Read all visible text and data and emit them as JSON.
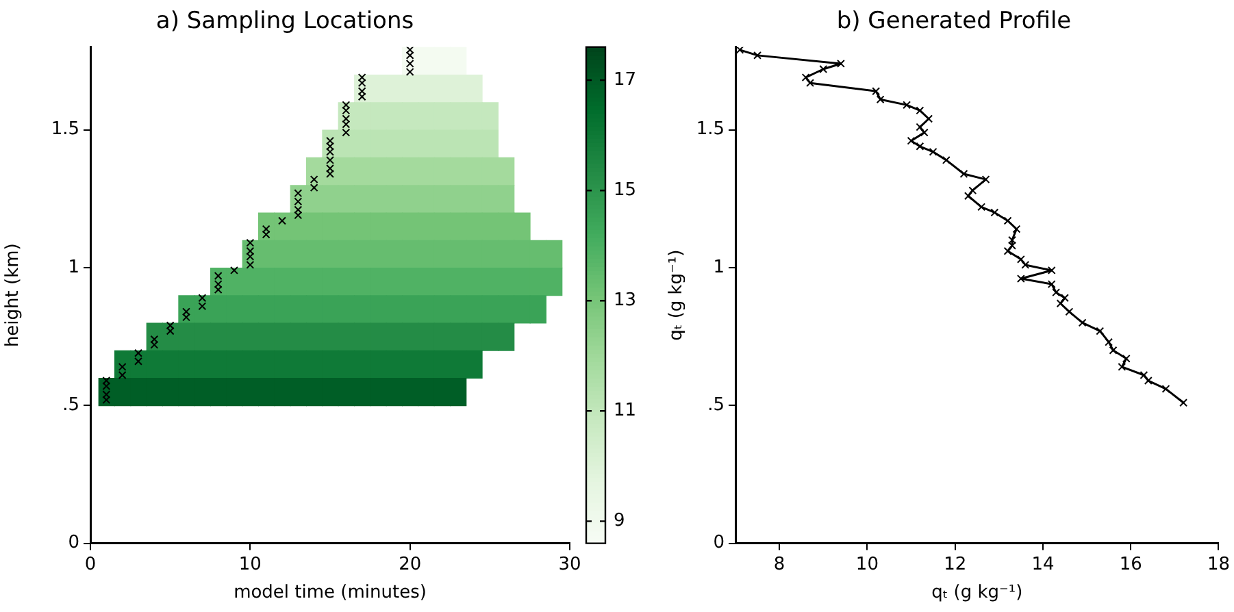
{
  "chart_data": [
    {
      "type": "heatmap",
      "title": "a) Sampling Locations",
      "xlabel": "model time (minutes)",
      "ylabel": "height (km)",
      "clabel": "qₜ (g kg⁻¹)",
      "x": [
        1,
        2,
        3,
        4,
        5,
        6,
        7,
        8,
        9,
        10,
        11,
        12,
        13,
        14,
        15,
        16,
        17,
        18,
        19,
        20,
        21,
        22,
        23,
        24,
        25,
        26,
        27,
        28,
        29
      ],
      "y": [
        1.75,
        1.65,
        1.55,
        1.45,
        1.35,
        1.25,
        1.15,
        1.05,
        0.95,
        0.85,
        0.75,
        0.65,
        0.55
      ],
      "cells": [
        [
          null,
          null,
          null,
          null,
          null,
          null,
          null,
          null,
          null,
          null,
          null,
          null,
          null,
          null,
          null,
          null,
          null,
          null,
          null,
          8.8,
          8.8,
          8.8,
          8.8,
          null,
          null,
          null,
          null,
          null,
          null
        ],
        [
          null,
          null,
          null,
          null,
          null,
          null,
          null,
          null,
          null,
          null,
          null,
          null,
          null,
          null,
          null,
          null,
          10.0,
          10.0,
          10.0,
          10.0,
          10.0,
          10.0,
          10.0,
          10.0,
          null,
          null,
          null,
          null,
          null
        ],
        [
          null,
          null,
          null,
          null,
          null,
          null,
          null,
          null,
          null,
          null,
          null,
          null,
          null,
          null,
          null,
          10.9,
          10.9,
          10.9,
          10.9,
          10.9,
          10.9,
          10.9,
          10.9,
          10.9,
          10.9,
          null,
          null,
          null,
          null
        ],
        [
          null,
          null,
          null,
          null,
          null,
          null,
          null,
          null,
          null,
          null,
          null,
          null,
          null,
          null,
          11.2,
          11.2,
          11.2,
          11.2,
          11.2,
          11.2,
          11.2,
          11.2,
          11.2,
          11.2,
          11.2,
          null,
          null,
          null,
          null
        ],
        [
          null,
          null,
          null,
          null,
          null,
          null,
          null,
          null,
          null,
          null,
          null,
          null,
          null,
          11.9,
          11.9,
          11.9,
          11.9,
          11.9,
          11.9,
          11.9,
          11.9,
          11.9,
          11.9,
          11.9,
          11.9,
          11.9,
          null,
          null,
          null
        ],
        [
          null,
          null,
          null,
          null,
          null,
          null,
          null,
          null,
          null,
          null,
          null,
          null,
          12.4,
          12.4,
          12.4,
          12.4,
          12.4,
          12.4,
          12.4,
          12.4,
          12.4,
          12.4,
          12.4,
          12.4,
          12.4,
          12.4,
          null,
          null,
          null
        ],
        [
          null,
          null,
          null,
          null,
          null,
          null,
          null,
          null,
          null,
          null,
          13.1,
          13.1,
          13.1,
          13.1,
          13.1,
          13.1,
          13.1,
          13.1,
          13.1,
          13.1,
          13.1,
          13.1,
          13.1,
          13.1,
          13.1,
          13.1,
          13.1,
          null,
          null
        ],
        [
          null,
          null,
          null,
          null,
          null,
          null,
          null,
          null,
          null,
          13.4,
          13.4,
          13.4,
          13.4,
          13.4,
          13.4,
          13.4,
          13.4,
          13.4,
          13.4,
          13.4,
          13.4,
          13.4,
          13.4,
          13.4,
          13.4,
          13.4,
          13.4,
          13.4,
          13.4
        ],
        [
          null,
          null,
          null,
          null,
          null,
          null,
          null,
          13.9,
          13.9,
          13.9,
          13.9,
          13.9,
          13.9,
          13.9,
          13.9,
          13.9,
          13.9,
          13.9,
          13.9,
          13.9,
          13.9,
          13.9,
          13.9,
          13.9,
          13.9,
          13.9,
          13.9,
          13.9,
          13.9
        ],
        [
          null,
          null,
          null,
          null,
          null,
          14.5,
          14.5,
          14.5,
          14.5,
          14.5,
          14.5,
          14.5,
          14.5,
          14.5,
          14.5,
          14.5,
          14.5,
          14.5,
          14.5,
          14.5,
          14.5,
          14.5,
          14.5,
          14.5,
          14.5,
          14.5,
          14.5,
          14.5,
          null
        ],
        [
          null,
          null,
          null,
          15.3,
          15.3,
          15.3,
          15.3,
          15.3,
          15.3,
          15.3,
          15.3,
          15.3,
          15.3,
          15.3,
          15.3,
          15.3,
          15.3,
          15.3,
          15.3,
          15.3,
          15.3,
          15.3,
          15.3,
          15.3,
          15.3,
          15.3,
          null,
          null,
          null
        ],
        [
          null,
          16.0,
          16.0,
          16.0,
          16.0,
          16.0,
          16.0,
          16.0,
          16.0,
          16.0,
          16.0,
          16.0,
          16.0,
          16.0,
          16.0,
          16.0,
          16.0,
          16.0,
          16.0,
          16.0,
          16.0,
          16.0,
          16.0,
          16.0,
          null,
          null,
          null,
          null,
          null
        ],
        [
          16.9,
          16.9,
          16.9,
          16.9,
          16.9,
          16.9,
          16.9,
          16.9,
          16.9,
          16.9,
          16.9,
          16.9,
          16.9,
          16.9,
          16.9,
          16.9,
          16.9,
          16.9,
          16.9,
          16.9,
          16.9,
          16.9,
          16.9,
          null,
          null,
          null,
          null,
          null,
          null
        ]
      ],
      "clim": [
        8.6,
        17.6
      ],
      "cticks": [
        9,
        11,
        13,
        15,
        17
      ],
      "xlim": [
        0,
        30
      ],
      "xticks": [
        0,
        10,
        20,
        30
      ],
      "ylim": [
        0,
        1.8
      ],
      "yticks": [
        0,
        {
          "value": 0.5,
          "label": ".5"
        },
        1,
        1.5
      ],
      "grid": false,
      "legend": false,
      "marker": "cross",
      "series": [
        {
          "type": "scatter",
          "color": "#000000",
          "x": [
            20,
            20,
            20,
            20,
            17,
            17,
            17,
            17,
            16,
            16,
            16,
            16,
            16,
            15,
            15,
            15,
            15,
            15,
            15,
            14,
            14,
            13,
            13,
            13,
            13,
            12,
            11,
            11,
            10,
            10,
            10,
            10,
            9,
            8,
            8,
            8,
            7,
            7,
            6,
            6,
            5,
            5,
            4,
            4,
            3,
            3,
            2,
            2,
            1,
            1,
            1,
            1
          ],
          "values": [
            1.79,
            1.77,
            1.74,
            1.71,
            1.69,
            1.67,
            1.64,
            1.62,
            1.59,
            1.57,
            1.54,
            1.52,
            1.49,
            1.46,
            1.44,
            1.42,
            1.39,
            1.36,
            1.34,
            1.32,
            1.29,
            1.27,
            1.24,
            1.21,
            1.19,
            1.17,
            1.14,
            1.12,
            1.09,
            1.06,
            1.04,
            1.01,
            0.99,
            0.97,
            0.94,
            0.92,
            0.89,
            0.86,
            0.84,
            0.82,
            0.79,
            0.77,
            0.74,
            0.72,
            0.69,
            0.66,
            0.64,
            0.61,
            0.59,
            0.57,
            0.54,
            0.52
          ]
        }
      ]
    },
    {
      "type": "line",
      "title": "b) Generated Profile",
      "xlabel": "qₜ (g kg⁻¹)",
      "xlim": [
        7,
        18
      ],
      "xticks": [
        8,
        10,
        12,
        14,
        16,
        18
      ],
      "ylim": [
        0,
        1.8
      ],
      "yticks": [
        0,
        {
          "value": 0.5,
          "label": ".5"
        },
        1,
        1.5
      ],
      "grid": false,
      "legend": false,
      "marker": "cross",
      "line_style": "solid",
      "series": [
        {
          "color": "#000000",
          "x": [
            7.1,
            7.5,
            9.4,
            9.0,
            8.6,
            8.7,
            10.2,
            10.3,
            10.9,
            11.2,
            11.4,
            11.2,
            11.3,
            11.0,
            11.2,
            11.5,
            11.8,
            12.2,
            12.7,
            12.4,
            12.3,
            12.6,
            12.9,
            13.2,
            13.4,
            13.3,
            13.3,
            13.2,
            13.5,
            13.6,
            14.2,
            13.5,
            14.2,
            14.3,
            14.5,
            14.4,
            14.6,
            14.9,
            15.3,
            15.5,
            15.6,
            15.9,
            15.8,
            16.3,
            16.4,
            16.8,
            17.2
          ],
          "values": [
            1.79,
            1.77,
            1.74,
            1.72,
            1.69,
            1.67,
            1.64,
            1.61,
            1.59,
            1.57,
            1.54,
            1.51,
            1.49,
            1.46,
            1.44,
            1.42,
            1.39,
            1.34,
            1.32,
            1.28,
            1.26,
            1.22,
            1.2,
            1.17,
            1.14,
            1.1,
            1.08,
            1.06,
            1.03,
            1.01,
            0.99,
            0.96,
            0.94,
            0.91,
            0.89,
            0.87,
            0.84,
            0.8,
            0.77,
            0.73,
            0.7,
            0.67,
            0.64,
            0.61,
            0.59,
            0.56,
            0.51
          ]
        }
      ]
    }
  ]
}
